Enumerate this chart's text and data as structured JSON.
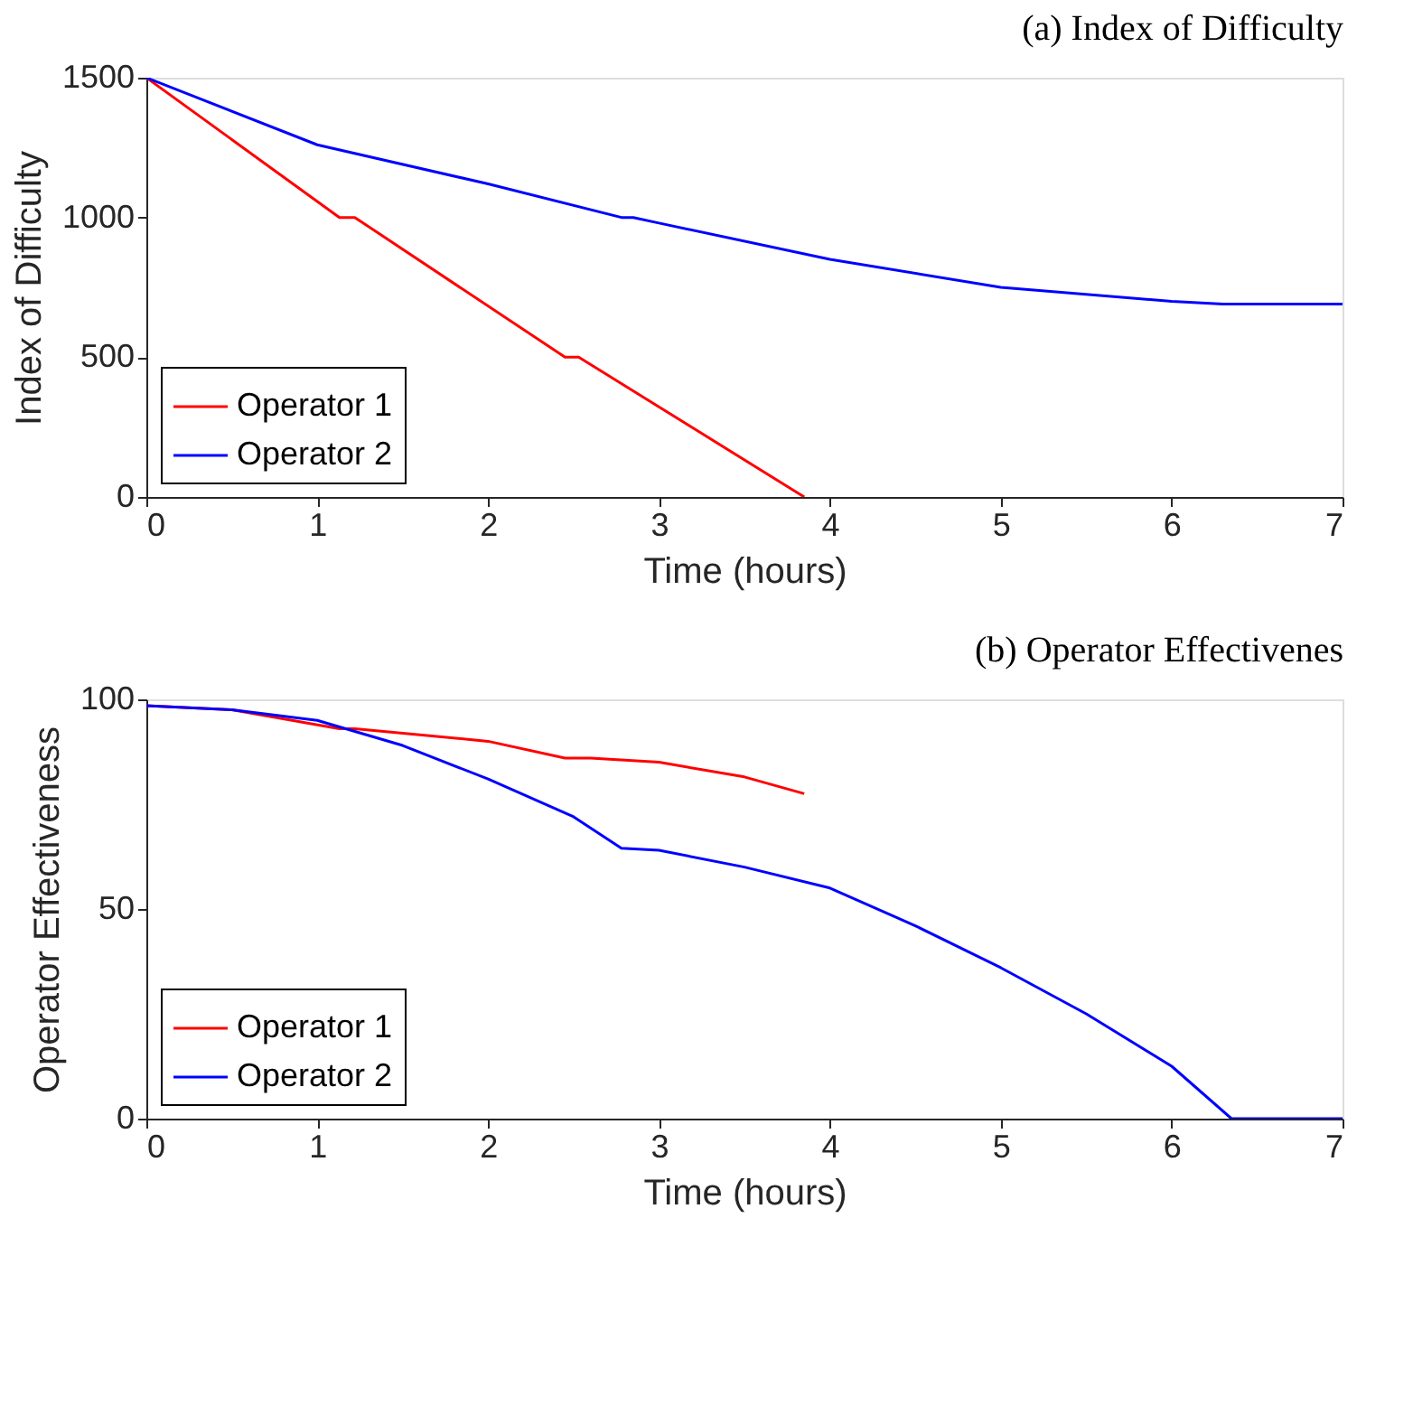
{
  "chart_data": [
    {
      "type": "line",
      "title": "(a) Index of Difficulty",
      "xlabel": "Time (hours)",
      "ylabel": "Index of Difficulty",
      "xlim": [
        0,
        7
      ],
      "xticks": [
        0,
        1,
        2,
        3,
        4,
        5,
        6,
        7
      ],
      "ylim": [
        0,
        1500
      ],
      "yticks": [
        0,
        500,
        1000,
        1500
      ],
      "grid": false,
      "legend": "bottom left",
      "line_style": "solid",
      "marker": "none",
      "series": [
        {
          "name": "Operator 1",
          "color": "#ff0000",
          "x": [
            0,
            1.13,
            1.22,
            2.45,
            2.53,
            3.85
          ],
          "values": [
            1500,
            1000,
            1000,
            500,
            500,
            0
          ]
        },
        {
          "name": "Operator 2",
          "color": "#0000ff",
          "x": [
            0,
            1,
            2,
            2.78,
            2.85,
            3,
            4,
            5,
            6,
            6.3,
            7
          ],
          "values": [
            1500,
            1260,
            1120,
            1000,
            1000,
            980,
            850,
            750,
            700,
            690,
            690
          ]
        }
      ]
    },
    {
      "type": "line",
      "title": "(b) Operator Effectivenes",
      "xlabel": "Time (hours)",
      "ylabel": "Operator Effectiveness",
      "xlim": [
        0,
        7
      ],
      "xticks": [
        0,
        1,
        2,
        3,
        4,
        5,
        6,
        7
      ],
      "ylim": [
        0,
        100
      ],
      "yticks": [
        0,
        50,
        100
      ],
      "grid": false,
      "legend": "bottom left",
      "line_style": "solid",
      "marker": "none",
      "series": [
        {
          "name": "Operator 1",
          "color": "#ff0000",
          "x": [
            0,
            0.5,
            1.13,
            1.22,
            2,
            2.45,
            2.6,
            3,
            3.5,
            3.85
          ],
          "values": [
            98.5,
            97.5,
            93,
            93,
            90,
            86,
            86,
            85,
            81.5,
            77.5
          ]
        },
        {
          "name": "Operator 2",
          "color": "#0000ff",
          "x": [
            0,
            0.5,
            1,
            1.5,
            2,
            2.5,
            2.78,
            3,
            3.5,
            4,
            4.5,
            5,
            5.5,
            6,
            6.35,
            7
          ],
          "values": [
            98.5,
            97.5,
            95,
            89,
            81,
            72,
            64.5,
            64,
            60,
            55,
            46,
            36,
            25,
            12.5,
            0,
            0
          ]
        }
      ]
    }
  ]
}
